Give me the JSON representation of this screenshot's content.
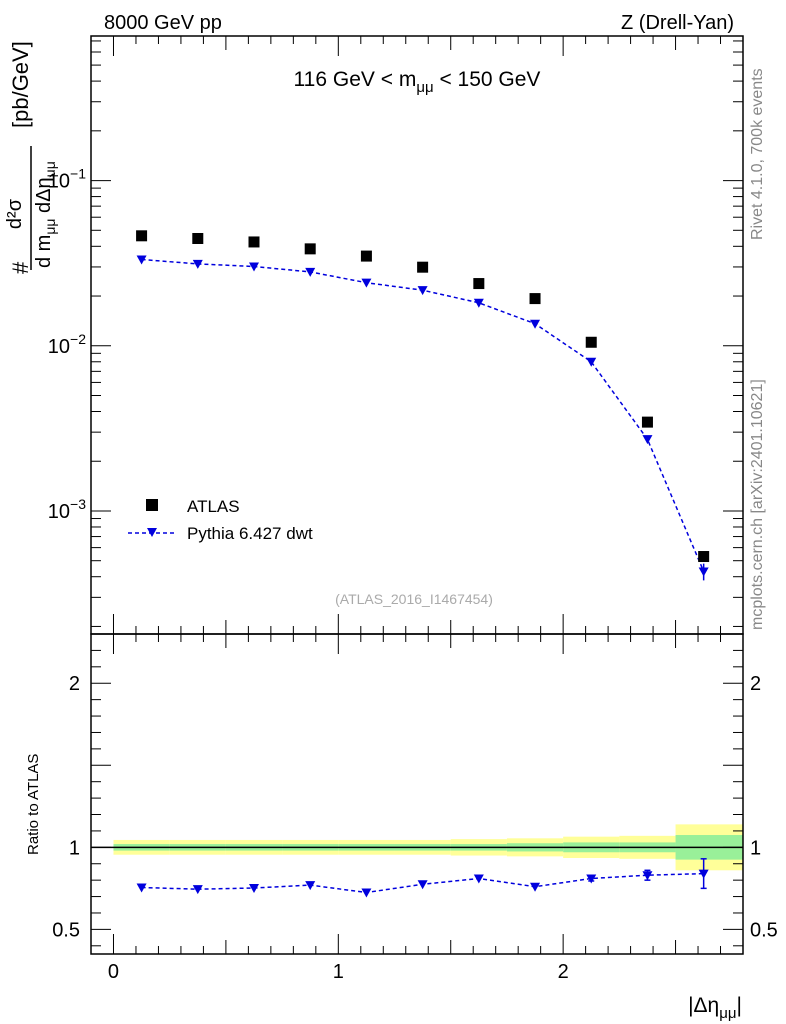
{
  "header": {
    "left": "8000 GeV pp",
    "right": "Z (Drell-Yan)"
  },
  "side_labels": {
    "rivet": "Rivet 4.1.0,  700k events",
    "mcplots": "mcplots.cern.ch [arXiv:2401.10621]"
  },
  "chart_data": [
    {
      "name": "main",
      "type": "scatter",
      "yscale": "log",
      "title": "116 GeV < m",
      "title_sub": "μμ",
      "title_tail": " < 150 GeV",
      "watermark": "(ATLAS_2016_I1467454)",
      "ylabel_parts": {
        "hash": "#",
        "num": "d²σ",
        "den": "d m",
        "den_sub1": "μμ",
        "den_mid": " dΔη",
        "den_sub2": "μμ",
        "unit": "[pb/GeV]"
      },
      "xlim": [
        -0.1,
        2.8
      ],
      "ylim": [
        0.00018,
        0.75
      ],
      "yticks": [
        {
          "base": "10",
          "exp": "−1",
          "value": 0.1
        },
        {
          "base": "10",
          "exp": "−2",
          "value": 0.01
        },
        {
          "base": "10",
          "exp": "−3",
          "value": 0.001
        }
      ],
      "legend": {
        "position": "bottom-left",
        "entries": [
          "ATLAS",
          "Pythia 6.427 dwt"
        ]
      },
      "bins": [
        [
          0.0,
          0.25
        ],
        [
          0.25,
          0.5
        ],
        [
          0.5,
          0.75
        ],
        [
          0.75,
          1.0
        ],
        [
          1.0,
          1.25
        ],
        [
          1.25,
          1.5
        ],
        [
          1.5,
          1.75
        ],
        [
          1.75,
          2.0
        ],
        [
          2.0,
          2.25
        ],
        [
          2.25,
          2.5
        ],
        [
          2.5,
          2.8
        ]
      ],
      "x": [
        0.125,
        0.375,
        0.625,
        0.875,
        1.125,
        1.375,
        1.625,
        1.875,
        2.125,
        2.375,
        2.625
      ],
      "series": [
        {
          "name": "ATLAS",
          "color": "#000000",
          "marker": "square",
          "values": [
            0.0463,
            0.0446,
            0.0425,
            0.0386,
            0.0349,
            0.0299,
            0.0238,
            0.0193,
            0.0105,
            0.00345,
            0.00053
          ]
        },
        {
          "name": "Pythia 6.427 dwt",
          "color": "#0000dd",
          "marker": "triangle-down",
          "values": [
            0.0333,
            0.0313,
            0.0302,
            0.028,
            0.0241,
            0.0217,
            0.0182,
            0.0136,
            0.008,
            0.00272,
            0.00043
          ],
          "errors": [
            0,
            0,
            0,
            0,
            0,
            0,
            0,
            0,
            0,
            0.0001,
            5e-05
          ]
        }
      ]
    },
    {
      "name": "ratio",
      "type": "scatter",
      "ylabel": "Ratio to ATLAS",
      "xlabel_base": "|Δη",
      "xlabel_sub": "μμ",
      "xlabel_tail": "|",
      "xlim": [
        -0.1,
        2.8
      ],
      "ylim": [
        0.35,
        2.3
      ],
      "xticks": [
        {
          "label": "0",
          "value": 0
        },
        {
          "label": "1",
          "value": 1
        },
        {
          "label": "2",
          "value": 2
        }
      ],
      "yticks": [
        {
          "label": "0.5",
          "value": 0.5
        },
        {
          "label": "1",
          "value": 1
        },
        {
          "label": "2",
          "value": 2
        }
      ],
      "bands": {
        "yellow_color": "#ffff99",
        "green_color": "#99f099",
        "yellow_half": [
          0.045,
          0.045,
          0.045,
          0.045,
          0.045,
          0.045,
          0.05,
          0.055,
          0.065,
          0.07,
          0.14
        ],
        "green_half": [
          0.02,
          0.02,
          0.02,
          0.02,
          0.02,
          0.02,
          0.02,
          0.025,
          0.03,
          0.03,
          0.075
        ]
      },
      "series": [
        {
          "name": "Pythia 6.427 dwt",
          "color": "#0000dd",
          "values": [
            0.755,
            0.745,
            0.752,
            0.77,
            0.725,
            0.775,
            0.81,
            0.76,
            0.81,
            0.83,
            0.84
          ],
          "errors": [
            0,
            0,
            0,
            0,
            0,
            0,
            0,
            0,
            0.015,
            0.03,
            0.09
          ]
        }
      ]
    }
  ]
}
